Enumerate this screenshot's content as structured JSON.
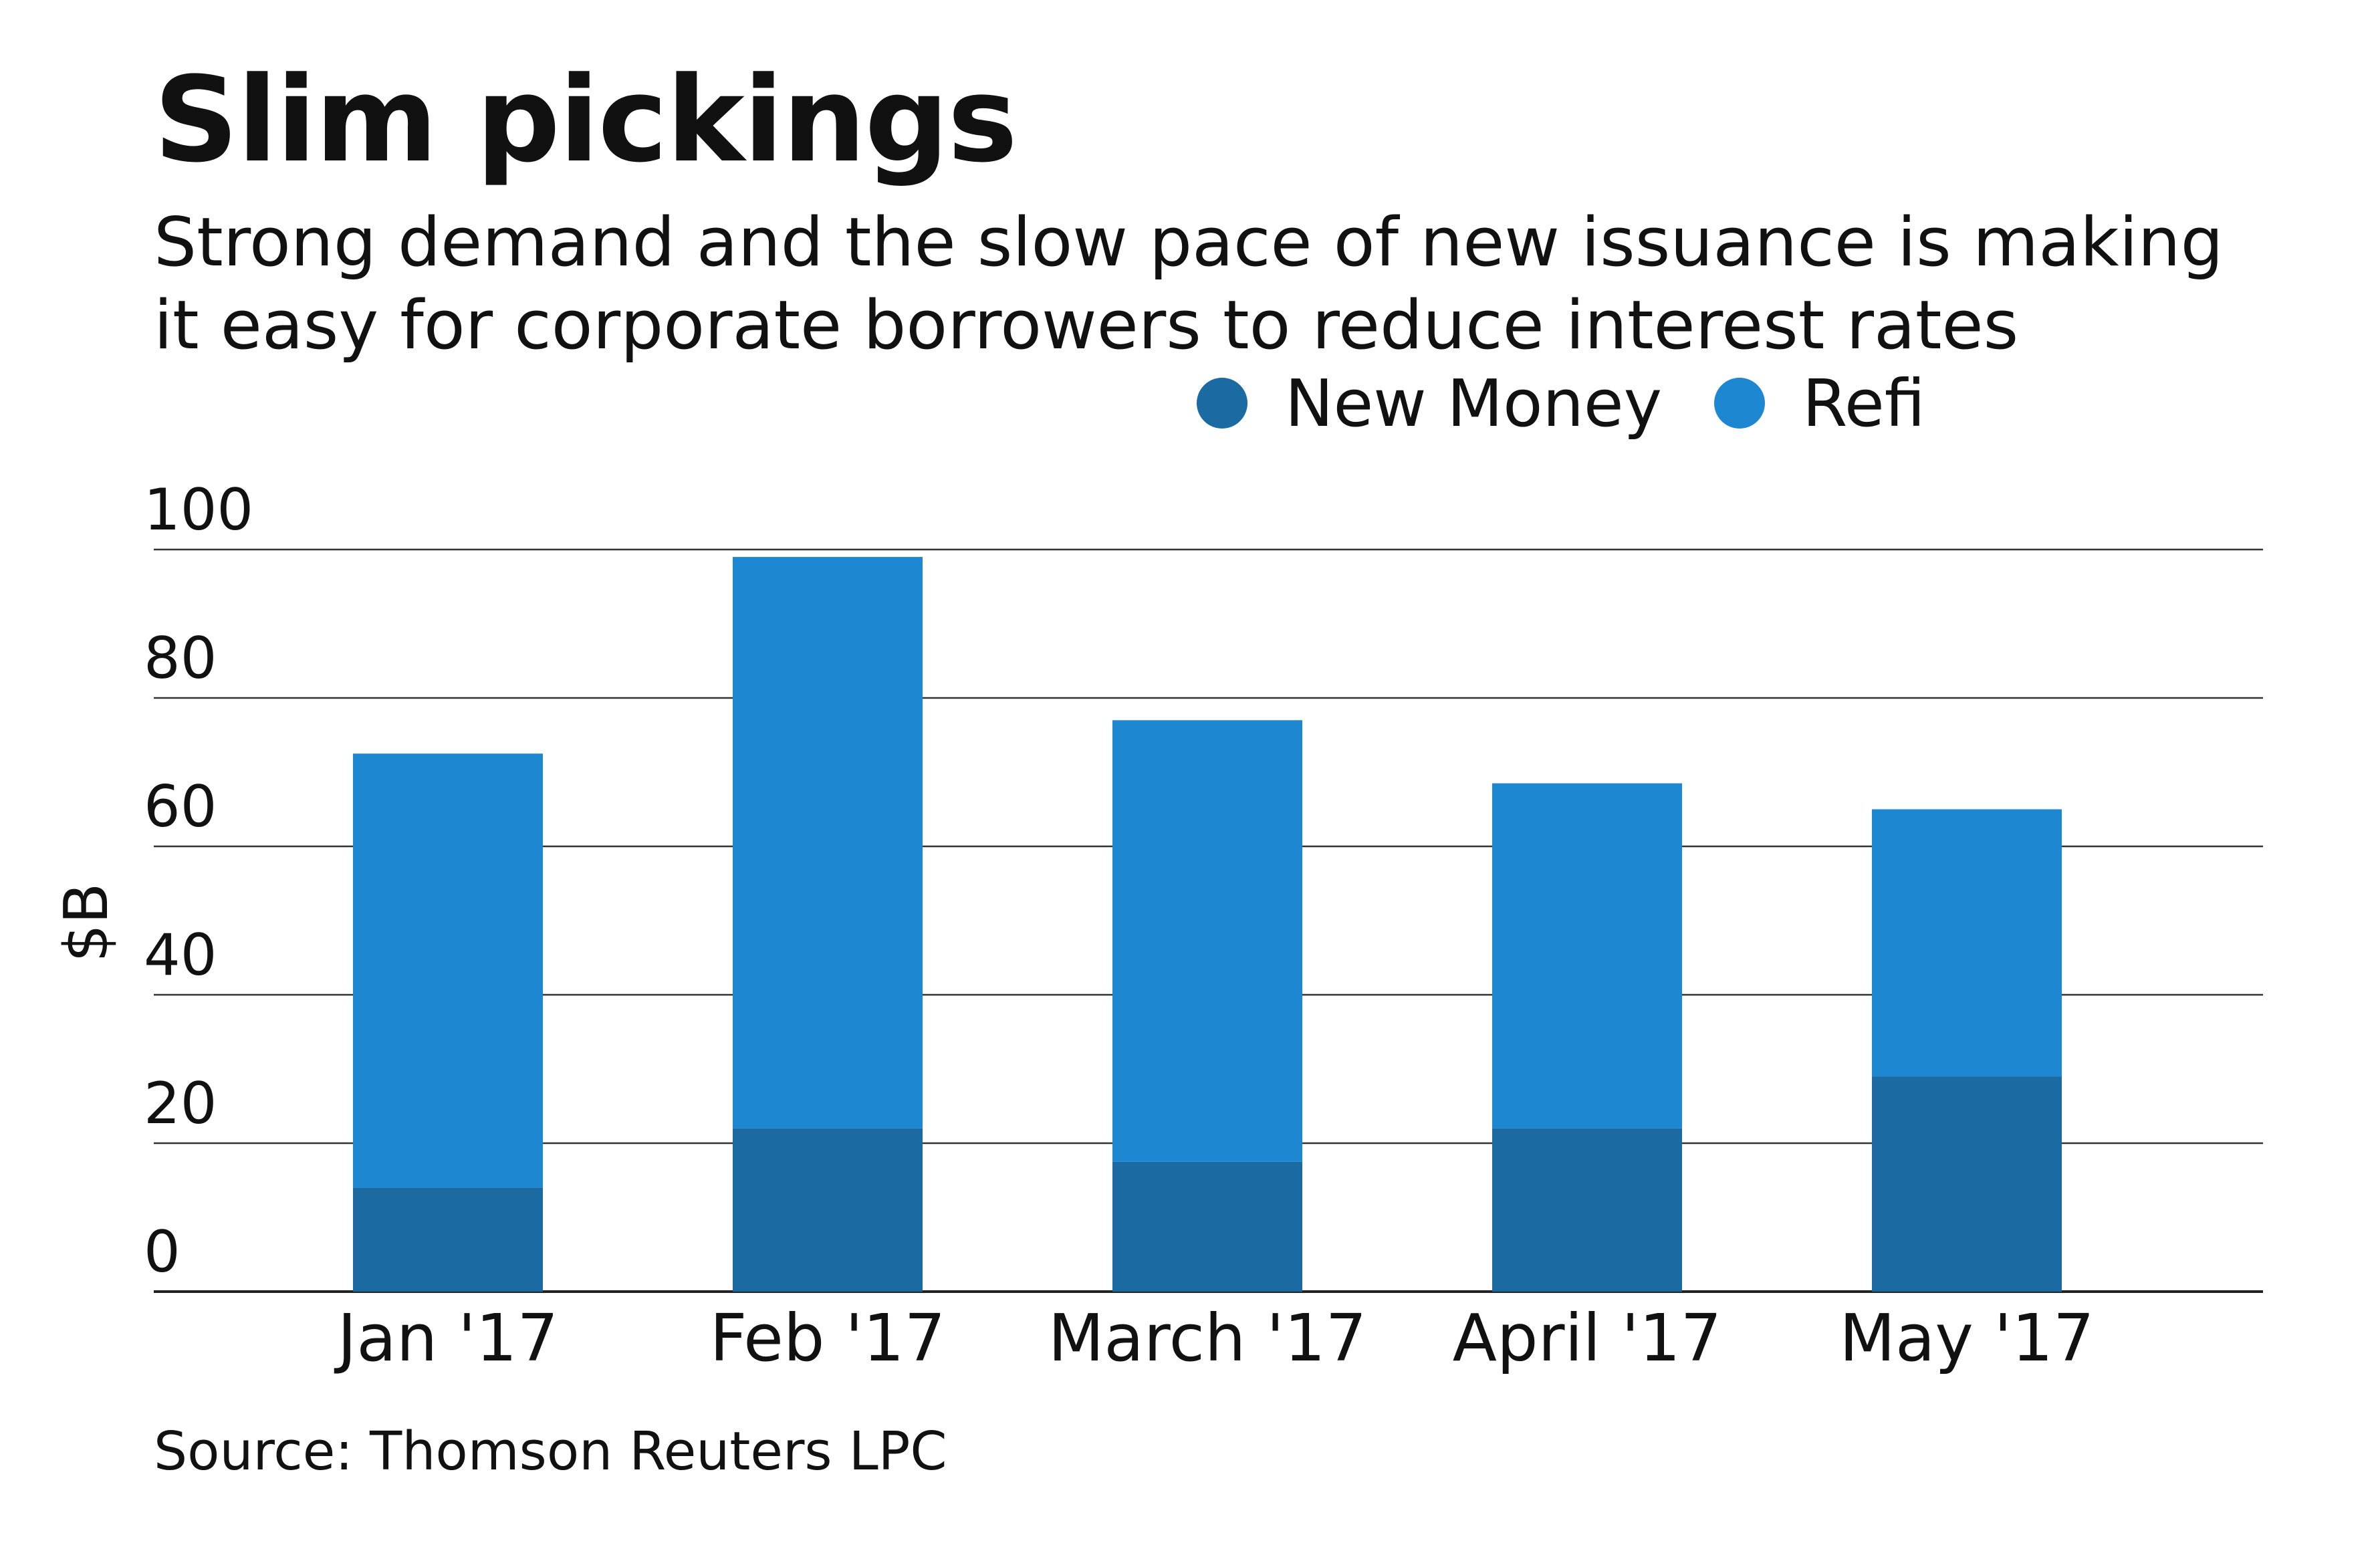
{
  "header": {
    "title": "Slim pickings",
    "subtitle_lines": [
      "Strong demand and the slow pace of new issuance is making",
      "it easy for corporate borrowers to reduce interest rates"
    ]
  },
  "legend": {
    "items": [
      {
        "label": "New Money",
        "color": "#1b6aa2"
      },
      {
        "label": "Refi",
        "color": "#1d87d2"
      }
    ]
  },
  "source": "Source: Thomson Reuters LPC",
  "chart_data": {
    "type": "bar",
    "stacked": true,
    "categories": [
      "Jan '17",
      "Feb '17",
      "March '17",
      "April '17",
      "May '17"
    ],
    "series": [
      {
        "name": "New Money",
        "values": [
          14,
          22,
          17.5,
          22,
          29
        ],
        "color": "#1b6aa2"
      },
      {
        "name": "Refi",
        "values": [
          58.5,
          77,
          59.5,
          46.5,
          36
        ],
        "color": "#1d87d2"
      }
    ],
    "ylabel": "$B",
    "ylim": [
      0,
      100
    ],
    "yticks": [
      0,
      20,
      40,
      60,
      80,
      100
    ],
    "grid": true,
    "legend_position": "top-right"
  }
}
